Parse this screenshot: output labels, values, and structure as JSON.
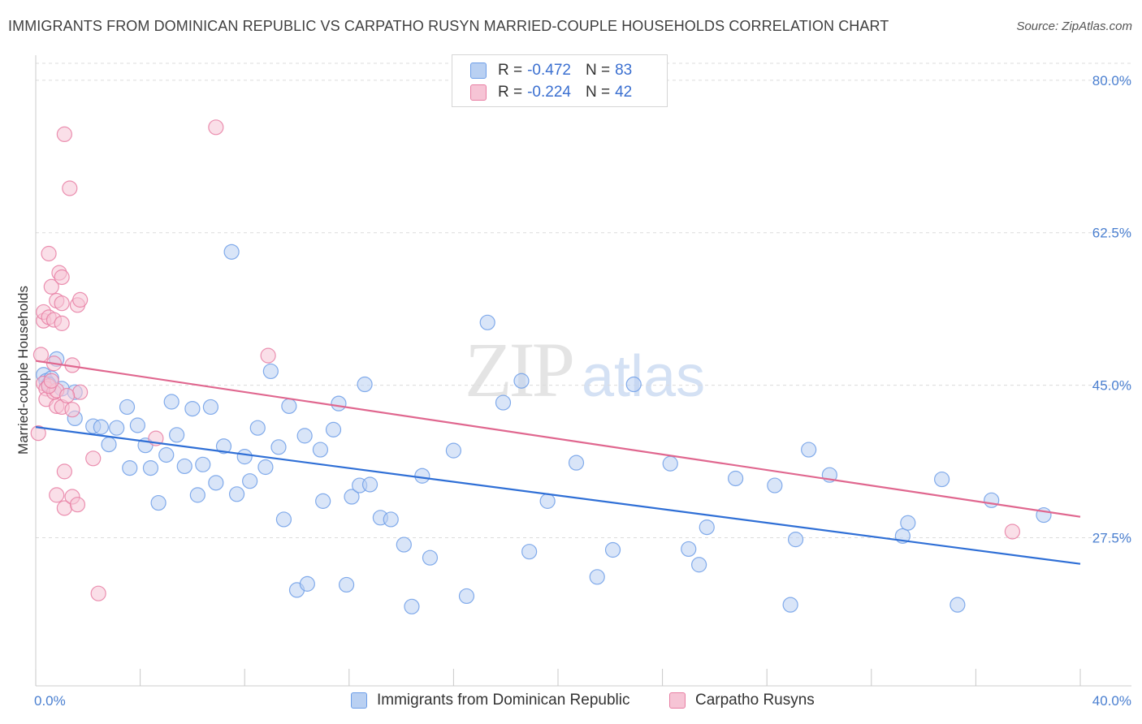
{
  "title": "IMMIGRANTS FROM DOMINICAN REPUBLIC VS CARPATHO RUSYN MARRIED-COUPLE HOUSEHOLDS CORRELATION CHART",
  "source": "Source: ZipAtlas.com",
  "legend": {
    "rows": [
      {
        "r_label": "R =",
        "r_value": "-0.472",
        "n_label": "N =",
        "n_value": "83",
        "color": "#6d9ee8",
        "fill": "#b9d0f2"
      },
      {
        "r_label": "R =",
        "r_value": "-0.224",
        "n_label": "N =",
        "n_value": "42",
        "color": "#e87ea3",
        "fill": "#f6c4d5"
      }
    ]
  },
  "bottom_legend": [
    "Immigrants from Dominican Republic",
    "Carpatho Rusyns"
  ],
  "chart_data": {
    "type": "scatter",
    "ylabel": "Married-couple Households",
    "x_tick_labels": [
      "0.0%",
      "40.0%"
    ],
    "y_tick_labels": [
      "80.0%",
      "62.5%",
      "45.0%",
      "27.5%"
    ],
    "y_ticks": [
      80.0,
      62.5,
      45.0,
      27.5
    ],
    "xlim": [
      0,
      40
    ],
    "ylim": [
      10.5,
      82.5
    ],
    "grid": true,
    "watermark": "ZIPatlas",
    "series": [
      {
        "name": "Immigrants from Dominican Republic",
        "color": "#6d9ee8",
        "fill": "#b9d0f2",
        "trend": [
          [
            0,
            40.2
          ],
          [
            40,
            24.5
          ]
        ],
        "points": [
          [
            0.3,
            46.2
          ],
          [
            0.4,
            45.5
          ],
          [
            0.6,
            45.8
          ],
          [
            0.5,
            45.1
          ],
          [
            1.0,
            44.6
          ],
          [
            0.8,
            48.0
          ],
          [
            1.5,
            44.2
          ],
          [
            1.5,
            41.2
          ],
          [
            2.2,
            40.3
          ],
          [
            2.5,
            40.2
          ],
          [
            2.8,
            38.2
          ],
          [
            3.1,
            40.1
          ],
          [
            3.5,
            42.5
          ],
          [
            3.6,
            35.5
          ],
          [
            3.9,
            40.4
          ],
          [
            4.2,
            38.1
          ],
          [
            4.4,
            35.5
          ],
          [
            4.7,
            31.5
          ],
          [
            5.0,
            37.0
          ],
          [
            5.2,
            43.1
          ],
          [
            5.4,
            39.3
          ],
          [
            5.7,
            35.7
          ],
          [
            6.0,
            42.3
          ],
          [
            6.2,
            32.4
          ],
          [
            6.4,
            35.9
          ],
          [
            6.7,
            42.5
          ],
          [
            6.9,
            33.8
          ],
          [
            7.2,
            38.0
          ],
          [
            7.5,
            60.3
          ],
          [
            7.7,
            32.5
          ],
          [
            8.0,
            36.8
          ],
          [
            8.2,
            34.0
          ],
          [
            8.5,
            40.1
          ],
          [
            8.8,
            35.6
          ],
          [
            9.0,
            46.6
          ],
          [
            9.3,
            37.9
          ],
          [
            9.5,
            29.6
          ],
          [
            9.7,
            42.6
          ],
          [
            10.0,
            21.5
          ],
          [
            10.3,
            39.2
          ],
          [
            10.4,
            22.2
          ],
          [
            10.9,
            37.6
          ],
          [
            11.0,
            31.7
          ],
          [
            11.4,
            39.9
          ],
          [
            11.6,
            42.9
          ],
          [
            11.9,
            22.1
          ],
          [
            12.1,
            32.2
          ],
          [
            12.4,
            33.5
          ],
          [
            12.6,
            45.1
          ],
          [
            12.8,
            33.6
          ],
          [
            13.2,
            29.8
          ],
          [
            13.6,
            29.6
          ],
          [
            14.1,
            26.7
          ],
          [
            14.4,
            19.6
          ],
          [
            14.8,
            34.6
          ],
          [
            15.1,
            25.2
          ],
          [
            16.0,
            37.5
          ],
          [
            16.5,
            20.8
          ],
          [
            17.3,
            52.2
          ],
          [
            17.9,
            43.0
          ],
          [
            18.6,
            45.5
          ],
          [
            18.9,
            25.9
          ],
          [
            19.6,
            31.7
          ],
          [
            20.7,
            36.1
          ],
          [
            21.5,
            23.0
          ],
          [
            22.1,
            26.1
          ],
          [
            22.9,
            45.1
          ],
          [
            24.3,
            36.0
          ],
          [
            25.0,
            26.2
          ],
          [
            25.4,
            24.4
          ],
          [
            25.7,
            28.7
          ],
          [
            26.8,
            34.3
          ],
          [
            28.3,
            33.5
          ],
          [
            28.9,
            19.8
          ],
          [
            29.1,
            27.3
          ],
          [
            29.6,
            37.6
          ],
          [
            30.4,
            34.7
          ],
          [
            33.2,
            27.7
          ],
          [
            33.4,
            29.2
          ],
          [
            34.7,
            34.2
          ],
          [
            35.3,
            19.8
          ],
          [
            36.6,
            31.8
          ],
          [
            38.6,
            30.1
          ]
        ]
      },
      {
        "name": "Carpatho Rusyns",
        "color": "#e87ea3",
        "fill": "#f6c4d5",
        "trend": [
          [
            0,
            47.8
          ],
          [
            40,
            29.9
          ]
        ],
        "points": [
          [
            0.1,
            39.5
          ],
          [
            0.2,
            48.5
          ],
          [
            0.3,
            52.4
          ],
          [
            0.3,
            53.4
          ],
          [
            0.3,
            45.2
          ],
          [
            0.4,
            44.6
          ],
          [
            0.4,
            43.4
          ],
          [
            0.5,
            52.8
          ],
          [
            0.5,
            60.1
          ],
          [
            0.6,
            56.3
          ],
          [
            0.7,
            47.5
          ],
          [
            0.7,
            52.5
          ],
          [
            0.7,
            44.2
          ],
          [
            0.8,
            32.4
          ],
          [
            0.8,
            54.7
          ],
          [
            0.8,
            44.4
          ],
          [
            0.8,
            42.6
          ],
          [
            0.9,
            57.9
          ],
          [
            1.0,
            42.5
          ],
          [
            1.0,
            52.1
          ],
          [
            1.0,
            54.4
          ],
          [
            1.0,
            57.4
          ],
          [
            1.1,
            73.8
          ],
          [
            1.1,
            35.1
          ],
          [
            1.1,
            30.9
          ],
          [
            1.3,
            67.6
          ],
          [
            1.4,
            42.2
          ],
          [
            1.4,
            32.2
          ],
          [
            1.4,
            47.3
          ],
          [
            1.6,
            31.3
          ],
          [
            1.6,
            54.2
          ],
          [
            1.7,
            44.2
          ],
          [
            1.7,
            54.8
          ],
          [
            2.2,
            36.6
          ],
          [
            2.4,
            21.1
          ],
          [
            4.6,
            38.9
          ],
          [
            6.9,
            74.6
          ],
          [
            8.9,
            48.4
          ],
          [
            37.4,
            28.2
          ],
          [
            0.5,
            44.9
          ],
          [
            0.6,
            45.5
          ],
          [
            1.2,
            43.8
          ]
        ]
      }
    ]
  }
}
